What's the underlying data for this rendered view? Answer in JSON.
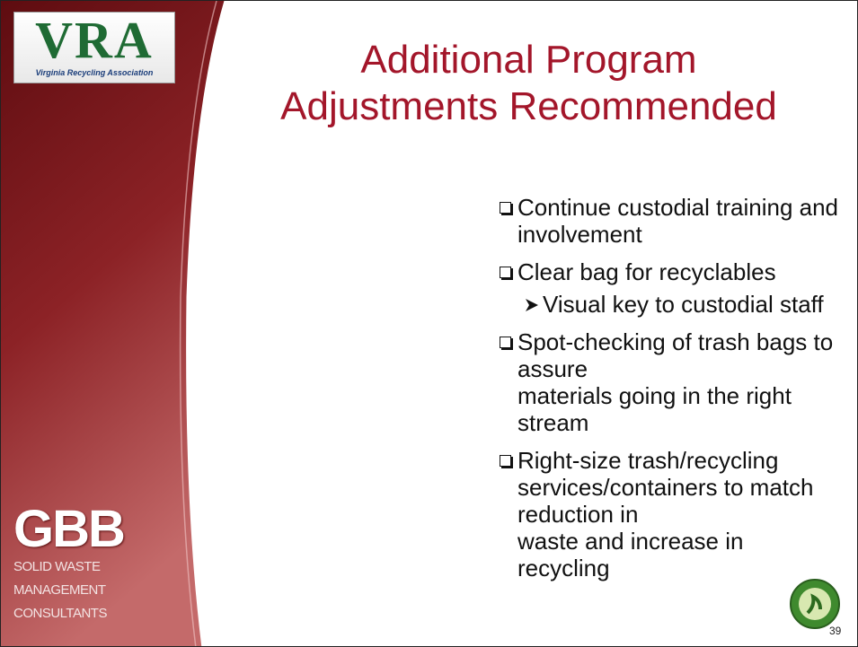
{
  "logos": {
    "top": {
      "mark": "VRA",
      "name": "Virginia Recycling Association"
    },
    "bottom": {
      "mark": "GBB",
      "lines": [
        "SOLID WASTE",
        "MANAGEMENT",
        "CONSULTANTS"
      ]
    }
  },
  "title": [
    "Additional Program",
    "Adjustments Recommended"
  ],
  "bullets": [
    {
      "lines": [
        "Continue custodial training and",
        "involvement"
      ]
    },
    {
      "lines": [
        "Clear bag for recyclables"
      ]
    },
    {
      "lines": [
        "Visual key to custodial staff"
      ],
      "level": 2
    },
    {
      "lines": [
        "Spot-checking of trash bags to assure",
        "materials going in the right stream"
      ]
    },
    {
      "lines": [
        "Right-size trash/recycling",
        "services/containers to match reduction in",
        "waste and increase in recycling"
      ]
    }
  ],
  "page_number": "39"
}
